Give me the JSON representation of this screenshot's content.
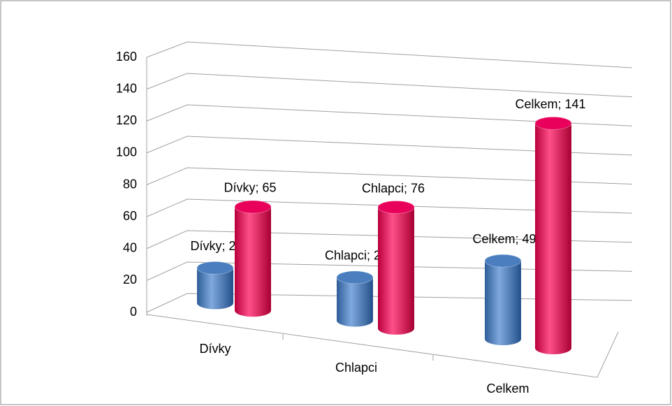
{
  "chart_data": {
    "type": "bar3d",
    "categories": [
      "Dívky",
      "Chlapci",
      "Celkem"
    ],
    "series": [
      {
        "color": "#4a7ebf",
        "values": [
          22,
          27,
          49
        ],
        "value_labels": [
          "Dívky; 22",
          "Chlapci; 27",
          "Celkem; 49"
        ]
      },
      {
        "color": "#e8005a",
        "values": [
          65,
          76,
          141
        ],
        "value_labels": [
          "Dívky; 65",
          "Chlapci; 76",
          "Celkem; 141"
        ]
      }
    ],
    "ylim": [
      0,
      160
    ],
    "yticks": [
      0,
      20,
      40,
      60,
      80,
      100,
      120,
      140,
      160
    ],
    "grid": true
  }
}
